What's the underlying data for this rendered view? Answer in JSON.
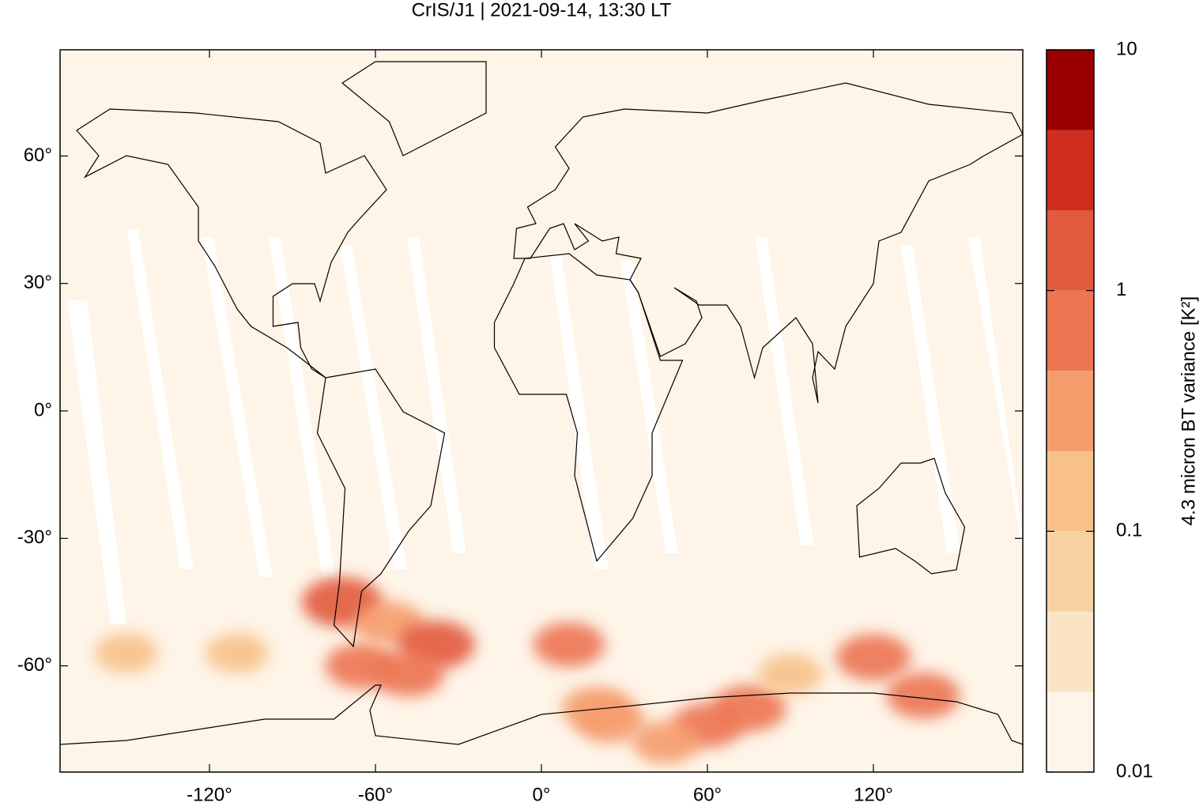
{
  "chart_data": {
    "type": "map",
    "title": "CrIS/J1 | 2021-09-14, 13:30 LT",
    "xlim": [
      -174,
      174
    ],
    "ylim": [
      -85,
      85
    ],
    "xticks": [
      {
        "value": -120,
        "label": "-120°"
      },
      {
        "value": -60,
        "label": "-60°"
      },
      {
        "value": 0,
        "label": "0°"
      },
      {
        "value": 60,
        "label": "60°"
      },
      {
        "value": 120,
        "label": "120°"
      }
    ],
    "yticks": [
      {
        "value": -60,
        "label": "-60°"
      },
      {
        "value": -30,
        "label": "-30°"
      },
      {
        "value": 0,
        "label": "0°"
      },
      {
        "value": 30,
        "label": "30°"
      },
      {
        "value": 60,
        "label": "60°"
      }
    ],
    "colorbar": {
      "label": "4.3 micron BT variance [K²]",
      "log": true,
      "lim": [
        0.01,
        10
      ],
      "ticks": [
        0.01,
        0.1,
        1,
        10
      ],
      "levels": [
        0.01,
        0.0215,
        0.0464,
        0.1,
        0.215,
        0.464,
        1,
        2.15,
        4.64,
        10
      ],
      "colors": [
        "#fef4e7",
        "#fbe4c6",
        "#f8d1a2",
        "#f8c18a",
        "#f59d6d",
        "#ec7552",
        "#e25a3e",
        "#cf2e1f",
        "#9a0000"
      ]
    },
    "points": {
      "lon": [
        -72,
        -65,
        -55,
        -38,
        -48,
        10,
        25,
        75,
        60,
        120,
        138,
        20,
        45,
        -110,
        -150,
        90
      ],
      "lat": [
        -45,
        -60,
        -50,
        -55,
        -62,
        -55,
        -73,
        -70,
        -74,
        -58,
        -67,
        -70,
        -78,
        -57,
        -57,
        -62
      ],
      "values": [
        2,
        0.6,
        0.4,
        1.2,
        0.5,
        0.5,
        0.4,
        0.8,
        0.5,
        0.8,
        0.7,
        0.4,
        0.3,
        0.15,
        0.15,
        0.2
      ]
    }
  }
}
